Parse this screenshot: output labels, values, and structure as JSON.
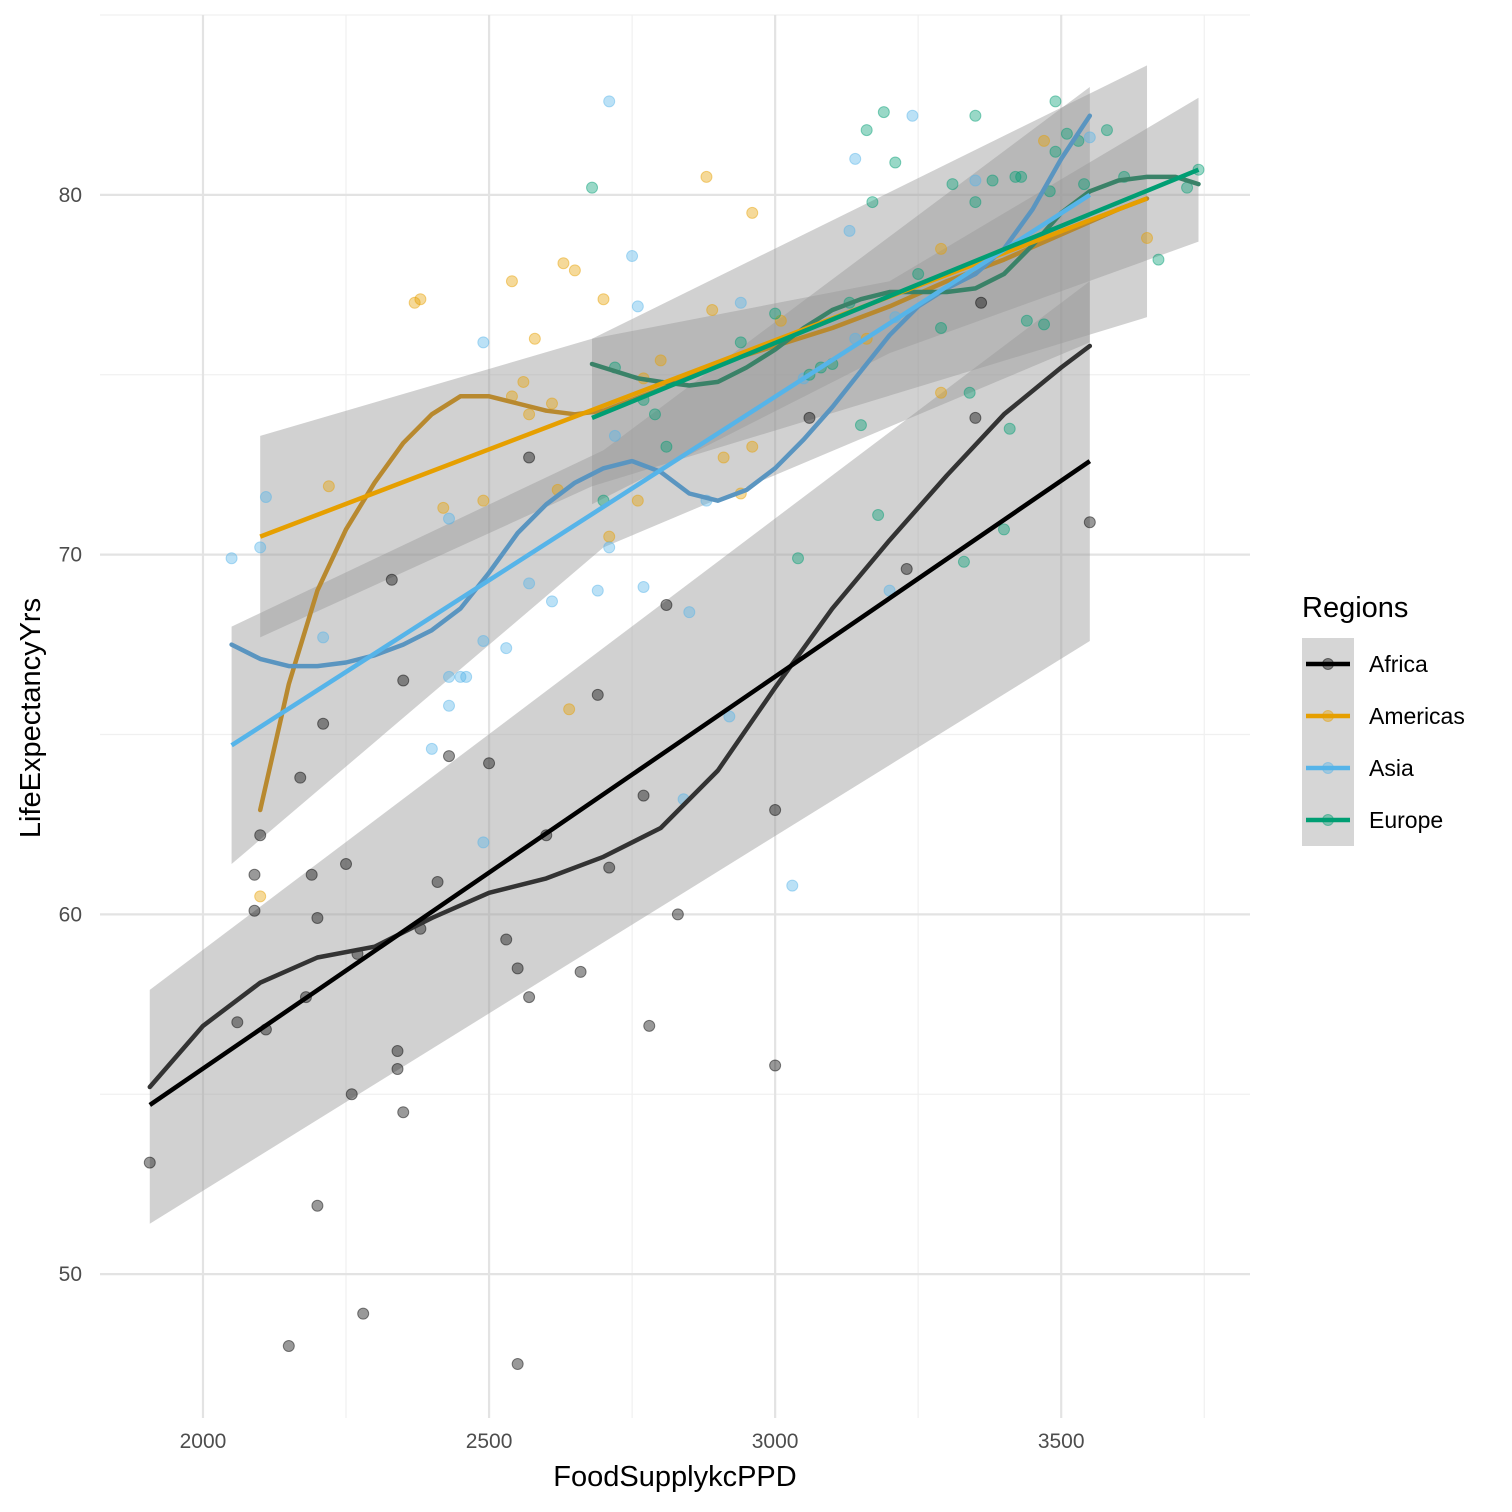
{
  "chart_data": {
    "type": "scatter",
    "xlabel": "FoodSupplykcPPD",
    "ylabel": "LifeExpectancyYrs",
    "xlim": [
      1820,
      3830
    ],
    "ylim": [
      46.0,
      85.0
    ],
    "x_ticks": [
      2000,
      2500,
      3000,
      3500
    ],
    "y_ticks": [
      50,
      60,
      70,
      80
    ],
    "grid": true,
    "legend": {
      "title": "Regions",
      "placement": "right"
    },
    "series": [
      {
        "name": "Africa",
        "color": "#000000",
        "points": [
          [
            1907,
            53.1
          ],
          [
            2060,
            57.0
          ],
          [
            2090,
            61.1
          ],
          [
            2090,
            60.1
          ],
          [
            2100,
            62.2
          ],
          [
            2110,
            56.8
          ],
          [
            2150,
            48.0
          ],
          [
            2170,
            63.8
          ],
          [
            2180,
            57.7
          ],
          [
            2190,
            61.1
          ],
          [
            2200,
            59.9
          ],
          [
            2200,
            51.9
          ],
          [
            2210,
            65.3
          ],
          [
            2250,
            61.4
          ],
          [
            2260,
            55.0
          ],
          [
            2270,
            58.9
          ],
          [
            2280,
            48.9
          ],
          [
            2330,
            69.3
          ],
          [
            2340,
            56.2
          ],
          [
            2340,
            55.7
          ],
          [
            2350,
            66.5
          ],
          [
            2350,
            54.5
          ],
          [
            2380,
            59.6
          ],
          [
            2410,
            60.9
          ],
          [
            2430,
            64.4
          ],
          [
            2500,
            64.2
          ],
          [
            2530,
            59.3
          ],
          [
            2550,
            58.5
          ],
          [
            2550,
            47.5
          ],
          [
            2570,
            72.7
          ],
          [
            2570,
            57.7
          ],
          [
            2600,
            62.2
          ],
          [
            2660,
            58.4
          ],
          [
            2690,
            66.1
          ],
          [
            2710,
            61.3
          ],
          [
            2770,
            63.3
          ],
          [
            2780,
            56.9
          ],
          [
            2810,
            68.6
          ],
          [
            2830,
            60.0
          ],
          [
            3000,
            62.9
          ],
          [
            3000,
            55.8
          ],
          [
            3060,
            73.8
          ],
          [
            3230,
            69.6
          ],
          [
            3350,
            73.8
          ],
          [
            3360,
            77.0
          ],
          [
            3550,
            70.9
          ]
        ],
        "linear_fit": {
          "x": [
            1907,
            3550
          ],
          "y": [
            54.7,
            72.6
          ]
        },
        "smooth_fit": {
          "x": [
            1907,
            2000,
            2100,
            2200,
            2300,
            2400,
            2500,
            2600,
            2700,
            2800,
            2900,
            3000,
            3100,
            3200,
            3300,
            3400,
            3500,
            3550
          ],
          "y": [
            55.2,
            56.9,
            58.1,
            58.8,
            59.1,
            59.9,
            60.6,
            61.0,
            61.6,
            62.4,
            64.0,
            66.3,
            68.5,
            70.4,
            72.2,
            73.9,
            75.2,
            75.8
          ]
        }
      },
      {
        "name": "Americas",
        "color": "#E69F00",
        "points": [
          [
            2100,
            60.5
          ],
          [
            2220,
            71.9
          ],
          [
            2370,
            77.0
          ],
          [
            2380,
            77.1
          ],
          [
            2420,
            71.3
          ],
          [
            2490,
            71.5
          ],
          [
            2540,
            77.6
          ],
          [
            2540,
            74.4
          ],
          [
            2560,
            74.8
          ],
          [
            2570,
            73.9
          ],
          [
            2580,
            76.0
          ],
          [
            2610,
            74.2
          ],
          [
            2620,
            71.8
          ],
          [
            2630,
            78.1
          ],
          [
            2640,
            65.7
          ],
          [
            2650,
            77.9
          ],
          [
            2700,
            77.1
          ],
          [
            2710,
            70.5
          ],
          [
            2760,
            71.5
          ],
          [
            2770,
            74.9
          ],
          [
            2800,
            75.4
          ],
          [
            2880,
            80.5
          ],
          [
            2890,
            76.8
          ],
          [
            2910,
            72.7
          ],
          [
            2940,
            71.7
          ],
          [
            2960,
            79.5
          ],
          [
            2960,
            73.0
          ],
          [
            3010,
            76.5
          ],
          [
            3160,
            76.0
          ],
          [
            3290,
            78.5
          ],
          [
            3290,
            74.5
          ],
          [
            3470,
            81.5
          ],
          [
            3650,
            78.8
          ]
        ],
        "linear_fit": {
          "x": [
            2100,
            3650
          ],
          "y": [
            70.5,
            79.9
          ]
        },
        "smooth_fit": {
          "x": [
            2100,
            2150,
            2200,
            2250,
            2300,
            2350,
            2400,
            2450,
            2500,
            2550,
            2600,
            2650,
            2700,
            2800,
            2900,
            3000,
            3100,
            3200,
            3300,
            3400,
            3500,
            3600,
            3650
          ],
          "y": [
            62.9,
            66.4,
            69.0,
            70.7,
            72.0,
            73.1,
            73.9,
            74.4,
            74.4,
            74.2,
            74.0,
            73.9,
            74.0,
            74.6,
            75.3,
            75.8,
            76.3,
            76.9,
            77.6,
            78.2,
            78.9,
            79.6,
            79.9
          ]
        }
      },
      {
        "name": "Asia",
        "color": "#56B4E9",
        "points": [
          [
            2050,
            69.9
          ],
          [
            2100,
            70.2
          ],
          [
            2110,
            71.6
          ],
          [
            2210,
            67.7
          ],
          [
            2400,
            64.6
          ],
          [
            2430,
            71.0
          ],
          [
            2430,
            66.6
          ],
          [
            2430,
            65.8
          ],
          [
            2450,
            66.6
          ],
          [
            2460,
            66.6
          ],
          [
            2490,
            75.9
          ],
          [
            2490,
            67.6
          ],
          [
            2490,
            62.0
          ],
          [
            2530,
            67.4
          ],
          [
            2570,
            69.2
          ],
          [
            2610,
            68.7
          ],
          [
            2690,
            69.0
          ],
          [
            2710,
            82.6
          ],
          [
            2710,
            70.2
          ],
          [
            2720,
            73.3
          ],
          [
            2750,
            78.3
          ],
          [
            2760,
            76.9
          ],
          [
            2770,
            69.1
          ],
          [
            2840,
            63.2
          ],
          [
            2850,
            68.4
          ],
          [
            2880,
            71.5
          ],
          [
            2920,
            65.5
          ],
          [
            2940,
            77.0
          ],
          [
            3030,
            60.8
          ],
          [
            3050,
            74.9
          ],
          [
            3130,
            79.0
          ],
          [
            3140,
            81.0
          ],
          [
            3140,
            76.0
          ],
          [
            3200,
            69.0
          ],
          [
            3210,
            76.6
          ],
          [
            3240,
            82.2
          ],
          [
            3350,
            80.4
          ],
          [
            3550,
            81.6
          ]
        ],
        "linear_fit": {
          "x": [
            2050,
            3550
          ],
          "y": [
            64.7,
            80.0
          ]
        },
        "smooth_fit": {
          "x": [
            2050,
            2100,
            2150,
            2200,
            2250,
            2300,
            2350,
            2400,
            2450,
            2500,
            2550,
            2600,
            2650,
            2700,
            2750,
            2800,
            2850,
            2900,
            2950,
            3000,
            3050,
            3100,
            3150,
            3200,
            3250,
            3300,
            3350,
            3400,
            3450,
            3500,
            3550
          ],
          "y": [
            67.5,
            67.1,
            66.9,
            66.9,
            67.0,
            67.2,
            67.5,
            67.9,
            68.5,
            69.5,
            70.6,
            71.4,
            72.0,
            72.4,
            72.6,
            72.3,
            71.7,
            71.5,
            71.8,
            72.4,
            73.2,
            74.1,
            75.1,
            76.1,
            76.9,
            77.4,
            77.8,
            78.5,
            79.6,
            81.0,
            82.2
          ]
        }
      },
      {
        "name": "Europe",
        "color": "#009E73",
        "points": [
          [
            2680,
            80.2
          ],
          [
            2700,
            71.5
          ],
          [
            2720,
            75.2
          ],
          [
            2770,
            74.3
          ],
          [
            2790,
            73.9
          ],
          [
            2810,
            73.0
          ],
          [
            2940,
            75.9
          ],
          [
            3000,
            76.7
          ],
          [
            3040,
            69.9
          ],
          [
            3060,
            75.0
          ],
          [
            3080,
            75.2
          ],
          [
            3100,
            75.3
          ],
          [
            3130,
            77.0
          ],
          [
            3150,
            73.6
          ],
          [
            3160,
            81.8
          ],
          [
            3170,
            79.8
          ],
          [
            3180,
            71.1
          ],
          [
            3190,
            82.3
          ],
          [
            3210,
            80.9
          ],
          [
            3250,
            77.8
          ],
          [
            3290,
            76.3
          ],
          [
            3310,
            80.3
          ],
          [
            3330,
            69.8
          ],
          [
            3340,
            74.5
          ],
          [
            3350,
            82.2
          ],
          [
            3350,
            79.8
          ],
          [
            3380,
            80.4
          ],
          [
            3400,
            70.7
          ],
          [
            3410,
            73.5
          ],
          [
            3420,
            80.5
          ],
          [
            3430,
            80.5
          ],
          [
            3440,
            76.5
          ],
          [
            3470,
            76.4
          ],
          [
            3480,
            80.1
          ],
          [
            3490,
            82.6
          ],
          [
            3490,
            81.2
          ],
          [
            3510,
            81.7
          ],
          [
            3530,
            81.5
          ],
          [
            3540,
            80.3
          ],
          [
            3580,
            81.8
          ],
          [
            3610,
            80.5
          ],
          [
            3670,
            78.2
          ],
          [
            3720,
            80.2
          ],
          [
            3740,
            80.7
          ]
        ],
        "linear_fit": {
          "x": [
            2680,
            3740
          ],
          "y": [
            73.8,
            80.7
          ]
        },
        "smooth_fit": {
          "x": [
            2680,
            2720,
            2760,
            2800,
            2850,
            2900,
            2950,
            3000,
            3050,
            3100,
            3150,
            3200,
            3250,
            3300,
            3350,
            3400,
            3450,
            3500,
            3550,
            3600,
            3650,
            3700,
            3740
          ],
          "y": [
            75.3,
            75.1,
            74.9,
            74.8,
            74.7,
            74.8,
            75.2,
            75.7,
            76.3,
            76.8,
            77.1,
            77.3,
            77.3,
            77.3,
            77.4,
            77.8,
            78.6,
            79.5,
            80.1,
            80.4,
            80.5,
            80.5,
            80.3
          ]
        }
      }
    ],
    "confidence_bands": [
      {
        "series": "Africa",
        "x": [
          1907,
          3550
        ],
        "lower": [
          51.4,
          67.6
        ],
        "upper": [
          57.9,
          77.6
        ]
      },
      {
        "series": "Americas",
        "x": [
          2100,
          2680,
          3650
        ],
        "lower": [
          67.7,
          71.9,
          76.6
        ],
        "upper": [
          73.3,
          76.0,
          83.6
        ]
      },
      {
        "series": "Asia",
        "x": [
          2050,
          2700,
          3550
        ],
        "lower": [
          61.4,
          70.2,
          75.9
        ],
        "upper": [
          68.0,
          72.9,
          83.0
        ]
      },
      {
        "series": "Europe",
        "x": [
          2680,
          3200,
          3740
        ],
        "lower": [
          71.4,
          75.6,
          78.7
        ],
        "upper": [
          76.0,
          77.6,
          82.7
        ]
      }
    ]
  }
}
